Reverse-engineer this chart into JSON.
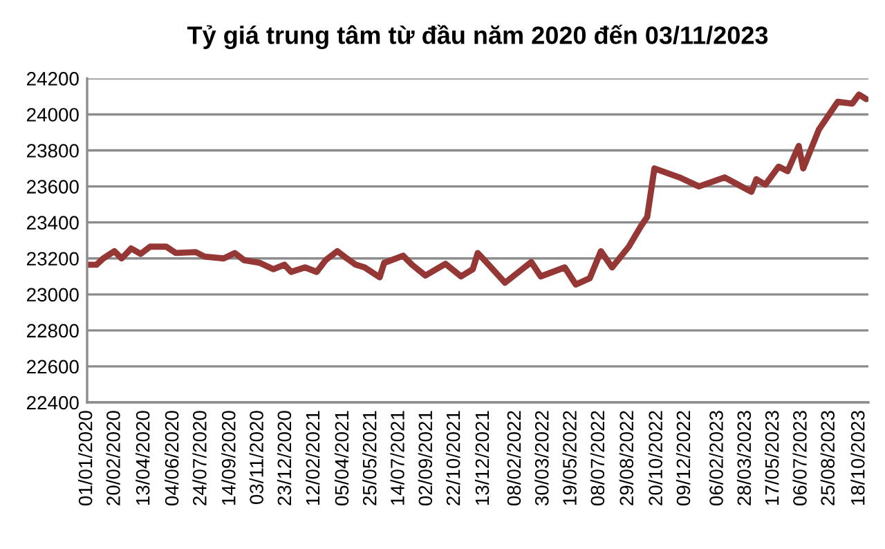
{
  "chart_data": {
    "type": "line",
    "title": "Tỷ giá trung tâm từ đầu năm 2020 đến 03/11/2023",
    "x": [
      "2020-01-01",
      "2020-01-18",
      "2020-01-30",
      "2020-02-19",
      "2020-03-03",
      "2020-03-20",
      "2020-04-06",
      "2020-04-23",
      "2020-05-22",
      "2020-06-08",
      "2020-07-14",
      "2020-07-30",
      "2020-09-02",
      "2020-09-22",
      "2020-10-09",
      "2020-11-06",
      "2020-11-30",
      "2020-12-20",
      "2021-01-01",
      "2021-01-26",
      "2021-02-16",
      "2021-03-04",
      "2021-03-25",
      "2021-04-11",
      "2021-04-27",
      "2021-05-13",
      "2021-06-09",
      "2021-06-17",
      "2021-07-21",
      "2021-08-06",
      "2021-08-30",
      "2021-10-05",
      "2021-11-02",
      "2021-11-23",
      "2021-12-02",
      "2021-12-14",
      "2022-01-20",
      "2022-03-08",
      "2022-03-25",
      "2022-05-07",
      "2022-05-27",
      "2022-06-21",
      "2022-07-11",
      "2022-07-31",
      "2022-08-30",
      "2022-09-21",
      "2022-10-02",
      "2022-10-15",
      "2022-11-29",
      "2023-01-03",
      "2023-02-18",
      "2023-03-14",
      "2023-04-07",
      "2023-04-16",
      "2023-05-02",
      "2023-05-26",
      "2023-06-11",
      "2023-07-01",
      "2023-07-09",
      "2023-08-06",
      "2023-09-09",
      "2023-10-05",
      "2023-10-17",
      "2023-10-30"
    ],
    "series": [
      {
        "color": "#953735",
        "values": [
          23165,
          23165,
          23200,
          23240,
          23200,
          23255,
          23225,
          23265,
          23265,
          23230,
          23235,
          23210,
          23200,
          23230,
          23190,
          23175,
          23140,
          23165,
          23125,
          23150,
          23125,
          23190,
          23240,
          23200,
          23165,
          23150,
          23095,
          23175,
          23215,
          23165,
          23105,
          23170,
          23100,
          23140,
          23230,
          23190,
          23065,
          23180,
          23100,
          23150,
          23055,
          23090,
          23240,
          23150,
          23265,
          23380,
          23430,
          23700,
          23650,
          23600,
          23650,
          23610,
          23570,
          23640,
          23610,
          23710,
          23685,
          23825,
          23700,
          23915,
          24070,
          24060,
          24110,
          24085
        ]
      }
    ],
    "xlim": [
      "2020-01-01",
      "2023-11-03"
    ],
    "xticks": [
      {
        "value": "2020-01-01",
        "label": "01/01/2020"
      },
      {
        "value": "2020-02-20",
        "label": "20/02/2020"
      },
      {
        "value": "2020-04-13",
        "label": "13/04/2020"
      },
      {
        "value": "2020-06-04",
        "label": "04/06/2020"
      },
      {
        "value": "2020-07-24",
        "label": "24/07/2020"
      },
      {
        "value": "2020-09-14",
        "label": "14/09/2020"
      },
      {
        "value": "2020-11-03",
        "label": "03/11/2020"
      },
      {
        "value": "2020-12-23",
        "label": "23/12/2020"
      },
      {
        "value": "2021-02-12",
        "label": "12/02/2021"
      },
      {
        "value": "2021-04-05",
        "label": "05/04/2021"
      },
      {
        "value": "2021-05-25",
        "label": "25/05/2021"
      },
      {
        "value": "2021-07-14",
        "label": "14/07/2021"
      },
      {
        "value": "2021-09-02",
        "label": "02/09/2021"
      },
      {
        "value": "2021-10-22",
        "label": "22/10/2021"
      },
      {
        "value": "2021-12-13",
        "label": "13/12/2021"
      },
      {
        "value": "2022-02-08",
        "label": "08/02/2022"
      },
      {
        "value": "2022-03-30",
        "label": "30/03/2022"
      },
      {
        "value": "2022-05-19",
        "label": "19/05/2022"
      },
      {
        "value": "2022-07-08",
        "label": "08/07/2022"
      },
      {
        "value": "2022-08-29",
        "label": "29/08/2022"
      },
      {
        "value": "2022-10-20",
        "label": "20/10/2022"
      },
      {
        "value": "2022-12-09",
        "label": "09/12/2022"
      },
      {
        "value": "2023-02-06",
        "label": "06/02/2023"
      },
      {
        "value": "2023-03-28",
        "label": "28/03/2023"
      },
      {
        "value": "2023-05-17",
        "label": "17/05/2023"
      },
      {
        "value": "2023-07-06",
        "label": "06/07/2023"
      },
      {
        "value": "2023-08-25",
        "label": "25/08/2023"
      },
      {
        "value": "2023-10-18",
        "label": "18/10/2023"
      }
    ],
    "ylim": [
      22400,
      24200
    ],
    "yticks": [
      22400,
      22600,
      22800,
      23000,
      23200,
      23400,
      23600,
      23800,
      24000,
      24200
    ],
    "grid": "y",
    "marker": "none",
    "line_style": "solid"
  }
}
